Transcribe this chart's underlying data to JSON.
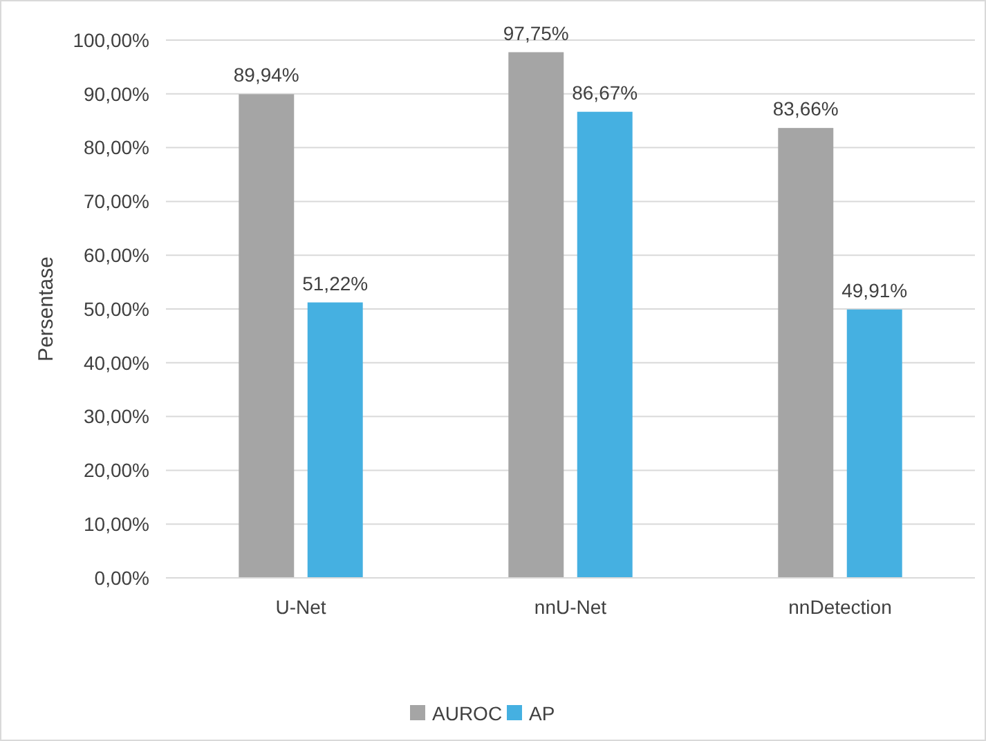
{
  "chart_data": {
    "type": "bar",
    "ylabel": "Persentase",
    "categories": [
      "U-Net",
      "nnU-Net",
      "nnDetection"
    ],
    "series": [
      {
        "name": "AUROC",
        "color": "#a5a5a5",
        "values": [
          89.94,
          97.75,
          83.66
        ],
        "value_labels": [
          "89,94%",
          "97,75%",
          "83,66%"
        ]
      },
      {
        "name": "AP",
        "color": "#45b0e1",
        "values": [
          51.22,
          86.67,
          49.91
        ],
        "value_labels": [
          "51,22%",
          "86,67%",
          "49,91%"
        ]
      }
    ],
    "ylim": [
      0,
      100
    ],
    "yticks": [
      {
        "value": 0,
        "label": "0,00%"
      },
      {
        "value": 10,
        "label": "10,00%"
      },
      {
        "value": 20,
        "label": "20,00%"
      },
      {
        "value": 30,
        "label": "30,00%"
      },
      {
        "value": 40,
        "label": "40,00%"
      },
      {
        "value": 50,
        "label": "50,00%"
      },
      {
        "value": 60,
        "label": "60,00%"
      },
      {
        "value": 70,
        "label": "70,00%"
      },
      {
        "value": 80,
        "label": "80,00%"
      },
      {
        "value": 90,
        "label": "90,00%"
      },
      {
        "value": 100,
        "label": "100,00%"
      }
    ],
    "grid": "y",
    "legend": "bottom"
  }
}
